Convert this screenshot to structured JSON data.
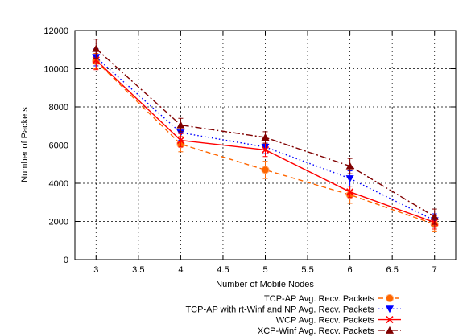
{
  "chart_data": {
    "type": "line",
    "title": "",
    "xlabel": "Number of Mobile Nodes",
    "ylabel": "Number of Packets",
    "xlim": [
      2.75,
      7.25
    ],
    "ylim": [
      0,
      12000
    ],
    "xticks": [
      3,
      3.5,
      4,
      4.5,
      5,
      5.5,
      6,
      6.5,
      7
    ],
    "xtick_labels": [
      "3",
      "3.5",
      "4",
      "4.5",
      "5",
      "5.5",
      "6",
      "6.5",
      "7"
    ],
    "yticks": [
      0,
      2000,
      4000,
      6000,
      8000,
      10000,
      12000
    ],
    "ytick_labels": [
      "0",
      "2000",
      "4000",
      "6000",
      "8000",
      "10000",
      "12000"
    ],
    "grid": true,
    "legend_position": "bottom-right, below plot",
    "series": [
      {
        "name": "TCP-AP Avg. Recv. Packets",
        "color": "#ff6600",
        "dash": "dashed",
        "marker": "circle",
        "x": [
          3,
          4,
          5,
          6,
          7
        ],
        "y": [
          10400,
          6050,
          4700,
          3400,
          1850
        ],
        "err": [
          400,
          400,
          450,
          450,
          350
        ]
      },
      {
        "name": "TCP-AP with rt-Winf and NP Avg. Recv. Packets",
        "color": "#0000ff",
        "dash": "dotted",
        "marker": "triangle-down",
        "x": [
          3,
          4,
          5,
          6,
          7
        ],
        "y": [
          10600,
          6650,
          5900,
          4250,
          2050
        ],
        "err": [
          450,
          400,
          350,
          400,
          350
        ]
      },
      {
        "name": "WCP Avg. Recv. Packets",
        "color": "#ff0000",
        "dash": "solid",
        "marker": "x",
        "x": [
          3,
          4,
          5,
          6,
          7
        ],
        "y": [
          10450,
          6250,
          5750,
          3550,
          1950
        ],
        "err": [
          500,
          350,
          350,
          300,
          350
        ]
      },
      {
        "name": "XCP-Winf Avg. Recv. Packets",
        "color": "#800000",
        "dash": "dash-dot",
        "marker": "triangle-up",
        "x": [
          3,
          4,
          5,
          6,
          7
        ],
        "y": [
          11050,
          7050,
          6400,
          4900,
          2250
        ],
        "err": [
          500,
          350,
          300,
          400,
          400
        ]
      }
    ]
  }
}
